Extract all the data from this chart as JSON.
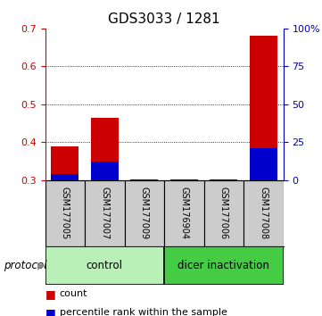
{
  "title": "GDS3033 / 1281",
  "samples": [
    "GSM177005",
    "GSM177007",
    "GSM177009",
    "GSM176904",
    "GSM177006",
    "GSM177008"
  ],
  "red_values": [
    0.39,
    0.465,
    0.302,
    0.301,
    0.301,
    0.68
  ],
  "blue_values": [
    0.315,
    0.35,
    0.301,
    0.301,
    0.301,
    0.385
  ],
  "bar_bottom": 0.3,
  "ylim_left": [
    0.3,
    0.7
  ],
  "ylim_right": [
    0,
    100
  ],
  "yticks_left": [
    0.3,
    0.4,
    0.5,
    0.6,
    0.7
  ],
  "yticks_right": [
    0,
    25,
    50,
    75,
    100
  ],
  "ytick_labels_right": [
    "0",
    "25",
    "50",
    "75",
    "100%"
  ],
  "gridlines": [
    0.4,
    0.5,
    0.6
  ],
  "groups": [
    {
      "label": "control",
      "indices": [
        0,
        1,
        2
      ],
      "color": "#b8f0b8"
    },
    {
      "label": "dicer inactivation",
      "indices": [
        3,
        4,
        5
      ],
      "color": "#44cc44"
    }
  ],
  "protocol_label": "protocol",
  "legend_items": [
    {
      "label": "count",
      "color": "#cc0000"
    },
    {
      "label": "percentile rank within the sample",
      "color": "#0000cc"
    }
  ],
  "bar_color_red": "#cc0000",
  "bar_color_blue": "#0000cc",
  "bar_width": 0.7,
  "left_axis_color": "#cc0000",
  "right_axis_color": "#0000bb",
  "sample_box_color": "#cccccc",
  "title_fontsize": 11,
  "tick_fontsize": 8,
  "sample_fontsize": 7,
  "group_fontsize": 8.5,
  "legend_fontsize": 8
}
